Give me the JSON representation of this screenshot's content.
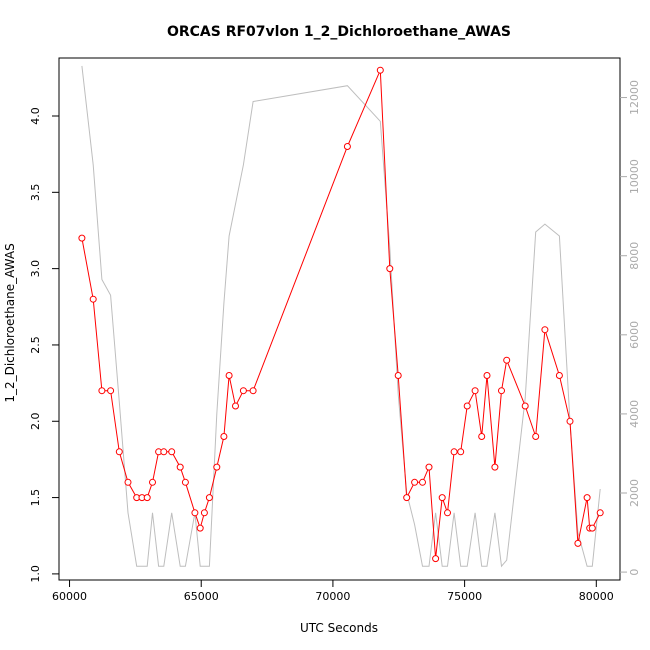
{
  "chart_data": {
    "type": "line",
    "title": "ORCAS RF07vlon 1_2_Dichloroethane_AWAS",
    "xlabel": "UTC Seconds",
    "ylabel": "1_2_Dichloroethane_AWAS",
    "xlim": [
      59600,
      80900
    ],
    "ylim": [
      0.96,
      4.38
    ],
    "y2lim": [
      -200,
      13000
    ],
    "x_ticks": [
      60000,
      65000,
      70000,
      75000,
      80000
    ],
    "y_ticks": [
      1.0,
      1.5,
      2.0,
      2.5,
      3.0,
      3.5,
      4.0
    ],
    "y2_ticks": [
      0,
      2000,
      4000,
      6000,
      8000,
      10000,
      12000
    ],
    "colors": {
      "primary": "#ff0000",
      "secondary": "#bebebe"
    },
    "series": [
      {
        "axis": "left",
        "markers": true,
        "x": [
          60470,
          60900,
          61230,
          61560,
          61890,
          62220,
          62550,
          62750,
          62950,
          63150,
          63380,
          63580,
          63880,
          64200,
          64400,
          64760,
          64960,
          65120,
          65310,
          65590,
          65860,
          66060,
          66300,
          66600,
          66970,
          70550,
          71800,
          72160,
          72480,
          72800,
          73100,
          73400,
          73650,
          73900,
          74150,
          74350,
          74600,
          74850,
          75100,
          75400,
          75650,
          75850,
          76150,
          76400,
          76600,
          77300,
          77700,
          78050,
          78600,
          79000,
          79300,
          79650,
          79750,
          79850,
          80150
        ],
        "y": [
          3.2,
          2.8,
          2.2,
          2.2,
          1.8,
          1.6,
          1.5,
          1.5,
          1.5,
          1.6,
          1.8,
          1.8,
          1.8,
          1.7,
          1.6,
          1.4,
          1.3,
          1.4,
          1.5,
          1.7,
          1.9,
          2.3,
          2.1,
          2.2,
          2.2,
          3.8,
          4.3,
          3.0,
          2.3,
          1.5,
          1.6,
          1.6,
          1.7,
          1.1,
          1.5,
          1.4,
          1.8,
          1.8,
          2.1,
          2.2,
          1.9,
          2.3,
          1.7,
          2.2,
          2.4,
          2.1,
          1.9,
          2.6,
          2.3,
          2.0,
          1.2,
          1.5,
          1.3,
          1.3,
          1.4
        ]
      },
      {
        "axis": "right",
        "markers": false,
        "x": [
          60470,
          60900,
          61230,
          61560,
          61890,
          62220,
          62550,
          62950,
          63150,
          63380,
          63580,
          63880,
          64200,
          64400,
          64760,
          64960,
          65310,
          65590,
          65860,
          66060,
          66600,
          66970,
          70550,
          71800,
          72160,
          72480,
          72800,
          73100,
          73400,
          73650,
          73900,
          74150,
          74350,
          74600,
          74850,
          75100,
          75400,
          75650,
          75850,
          76150,
          76400,
          76600,
          77300,
          77700,
          78050,
          78600,
          79000,
          79300,
          79650,
          79850,
          80150
        ],
        "y": [
          12800,
          10300,
          7400,
          7000,
          4300,
          1500,
          150,
          150,
          1500,
          150,
          150,
          1500,
          150,
          150,
          1500,
          150,
          150,
          4000,
          6800,
          8500,
          10300,
          11900,
          12300,
          11400,
          8200,
          4500,
          2000,
          1200,
          150,
          150,
          1500,
          150,
          150,
          1500,
          150,
          150,
          1500,
          150,
          150,
          1500,
          150,
          300,
          4400,
          8600,
          8800,
          8500,
          3800,
          1000,
          150,
          150,
          2100
        ]
      }
    ]
  }
}
